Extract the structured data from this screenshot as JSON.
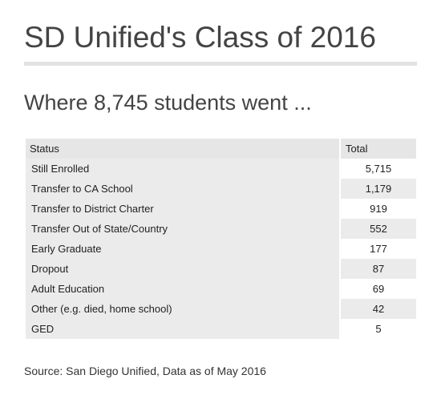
{
  "title": "SD Unified's Class of 2016",
  "subtitle": "Where 8,745 students went ...",
  "table": {
    "headers": [
      "Status",
      "Total"
    ],
    "rows": [
      {
        "status": "Still Enrolled",
        "total": "5,715"
      },
      {
        "status": "Transfer to CA School",
        "total": "1,179"
      },
      {
        "status": "Transfer to District Charter",
        "total": "919"
      },
      {
        "status": "Transfer Out of State/Country",
        "total": "552"
      },
      {
        "status": "Early Graduate",
        "total": "177"
      },
      {
        "status": "Dropout",
        "total": "87"
      },
      {
        "status": "Adult Education",
        "total": "69"
      },
      {
        "status": "Other (e.g. died, home school)",
        "total": "42"
      },
      {
        "status": "GED",
        "total": "5"
      }
    ]
  },
  "source": "Source: San Diego Unified, Data as of May 2016"
}
